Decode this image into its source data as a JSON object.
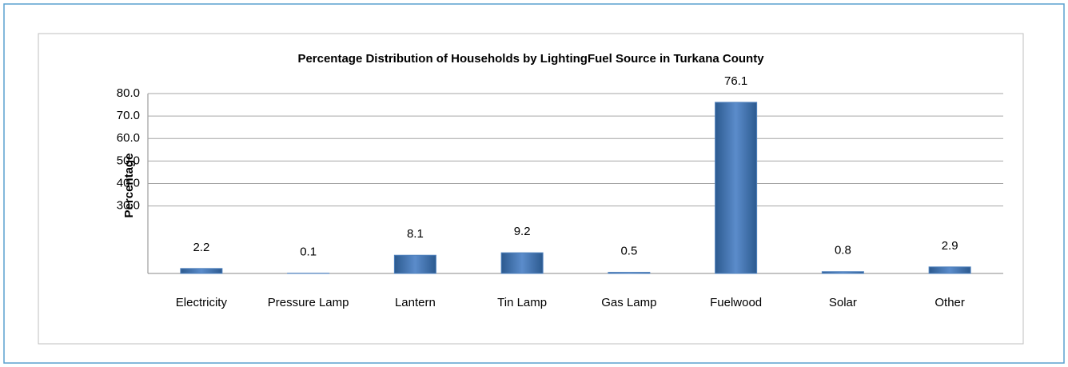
{
  "chart_data": {
    "type": "bar",
    "title": "Percentage Distribution of Households by LightingFuel Source in Turkana County",
    "y_label": "Percentage",
    "categories": [
      "Electricity",
      "Pressure Lamp",
      "Lantern",
      "Tin Lamp",
      "Gas Lamp",
      "Fuelwood",
      "Solar",
      "Other"
    ],
    "values": [
      2.2,
      0.1,
      8.1,
      9.2,
      0.5,
      76.1,
      0.8,
      2.9
    ],
    "color": "#4f81bd",
    "ylim": [
      0,
      80
    ],
    "yticks": [
      {
        "value": 30,
        "label": "30.0"
      },
      {
        "value": 40,
        "label": "40.0"
      },
      {
        "value": 50,
        "label": "50.0"
      },
      {
        "value": 60,
        "label": "60.0"
      },
      {
        "value": 70,
        "label": "70.0"
      },
      {
        "value": 80,
        "label": "80.0"
      }
    ],
    "grid": true
  }
}
